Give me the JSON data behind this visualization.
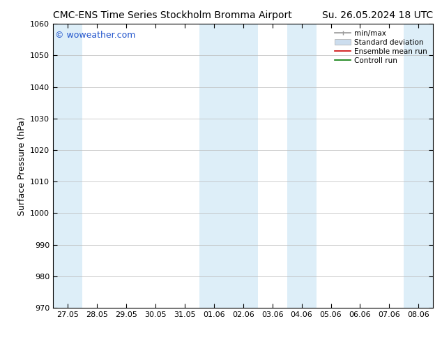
{
  "title_left": "CMC-ENS Time Series Stockholm Bromma Airport",
  "title_right": "Su. 26.05.2024 18 UTC",
  "ylabel": "Surface Pressure (hPa)",
  "ylim": [
    970,
    1060
  ],
  "yticks": [
    970,
    980,
    990,
    1000,
    1010,
    1020,
    1030,
    1040,
    1050,
    1060
  ],
  "xtick_labels": [
    "27.05",
    "28.05",
    "29.05",
    "30.05",
    "31.05",
    "01.06",
    "02.06",
    "03.06",
    "04.06",
    "05.06",
    "06.06",
    "07.06",
    "08.06"
  ],
  "xtick_positions": [
    0,
    1,
    2,
    3,
    4,
    5,
    6,
    7,
    8,
    9,
    10,
    11,
    12
  ],
  "xlim": [
    -0.5,
    12.5
  ],
  "shaded_bands": [
    {
      "xstart": -0.5,
      "xend": 0.5,
      "color": "#ddeef8"
    },
    {
      "xstart": 4.5,
      "xend": 6.5,
      "color": "#ddeef8"
    },
    {
      "xstart": 7.5,
      "xend": 8.5,
      "color": "#ddeef8"
    },
    {
      "xstart": 11.5,
      "xend": 12.5,
      "color": "#ddeef8"
    }
  ],
  "background_color": "#ffffff",
  "plot_bg_color": "#ffffff",
  "grid_color": "#bbbbbb",
  "watermark_text": "© woweather.com",
  "watermark_color": "#2255cc",
  "legend_labels": [
    "min/max",
    "Standard deviation",
    "Ensemble mean run",
    "Controll run"
  ],
  "legend_colors_line": [
    "#999999",
    "#bbbbbb",
    "#cc0000",
    "#007700"
  ],
  "title_fontsize": 10,
  "axis_label_fontsize": 9,
  "tick_fontsize": 8,
  "watermark_fontsize": 9,
  "legend_fontsize": 7.5
}
